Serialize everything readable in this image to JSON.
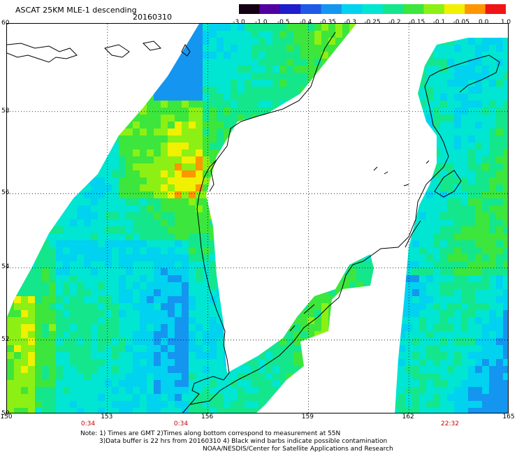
{
  "title": {
    "product": "ASCAT 25KM MLE-1 descending",
    "date": "20160310"
  },
  "colorbar": {
    "labels": [
      "-3.0",
      "-1.0",
      "-0.5",
      "-0.4",
      "-0.35",
      "-0.3",
      "-0.25",
      "-0.2",
      "-0.15",
      "-0.1",
      "-0.05",
      "0.0",
      "1.0"
    ],
    "colors": [
      "#140014",
      "#5000a0",
      "#1e1ecc",
      "#1e5ae6",
      "#1496f0",
      "#00d2f0",
      "#00e6d2",
      "#14e68c",
      "#3ce63c",
      "#8cf014",
      "#f0f000",
      "#ff9600",
      "#f01414"
    ]
  },
  "axes": {
    "lat_labels": [
      "60",
      "58",
      "56",
      "54",
      "52",
      "50"
    ],
    "lon_labels": [
      "150",
      "153",
      "156",
      "159",
      "162",
      "165"
    ],
    "lat_range": [
      50,
      60
    ],
    "lon_range": [
      150,
      165
    ]
  },
  "pass_times": [
    "0:34",
    "0:34",
    "22:32"
  ],
  "notes": {
    "line1": "Note: 1) Times are GMT 2)Times along bottom correspond to measurement at 55N",
    "line2": "3)Data buffer is 22 hrs from 20160310 4) Black wind barbs indicate possible contamination",
    "line3": "NOAA/NESDIS/Center for Satellite Applications and Research"
  }
}
